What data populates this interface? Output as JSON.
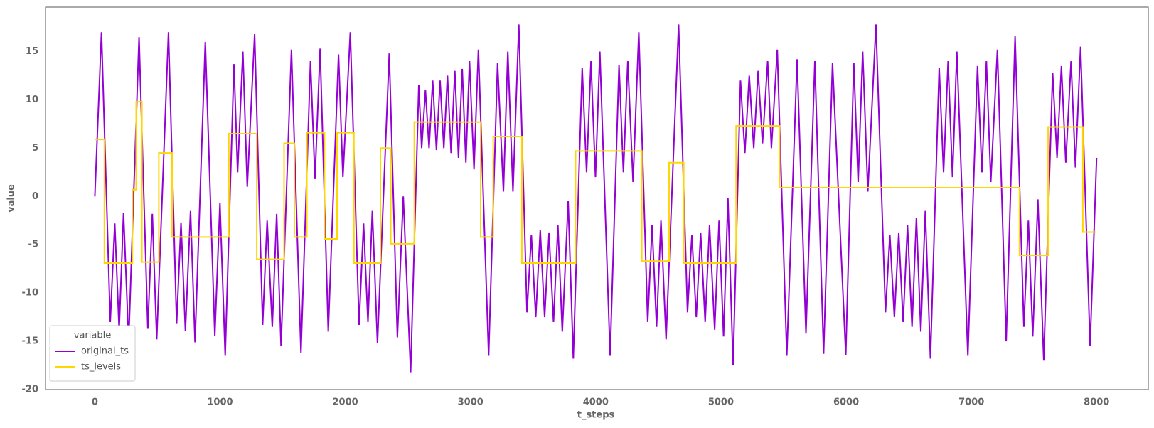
{
  "chart_data": {
    "type": "line",
    "x_label": "t_steps",
    "y_label": "value",
    "legend_title": "variable",
    "legend": "lower left",
    "grid": false,
    "xlim": [
      -394,
      8413
    ],
    "ylim": [
      -20,
      19.6
    ],
    "xticks": [
      0,
      1000,
      2000,
      3000,
      4000,
      5000,
      6000,
      7000,
      8000
    ],
    "yticks": [
      -20,
      -15,
      -10,
      -5,
      0,
      5,
      10,
      15
    ],
    "series": [
      {
        "name": "original_ts",
        "color": "#9400d3",
        "step": false,
        "x": [
          0,
          53,
          123,
          159,
          194,
          229,
          270,
          353,
          423,
          459,
          494,
          588,
          653,
          688,
          723,
          764,
          800,
          882,
          958,
          999,
          1041,
          1111,
          1140,
          1182,
          1217,
          1276,
          1340,
          1376,
          1417,
          1452,
          1487,
          1570,
          1646,
          1722,
          1758,
          1799,
          1864,
          1946,
          1981,
          2040,
          2110,
          2146,
          2181,
          2216,
          2257,
          2351,
          2416,
          2463,
          2522,
          2587,
          2610,
          2640,
          2669,
          2698,
          2728,
          2757,
          2787,
          2816,
          2845,
          2875,
          2904,
          2934,
          2963,
          2992,
          3028,
          3063,
          3145,
          3216,
          3263,
          3298,
          3339,
          3386,
          3451,
          3486,
          3521,
          3557,
          3592,
          3627,
          3663,
          3698,
          3733,
          3780,
          3821,
          3892,
          3927,
          3962,
          3998,
          4033,
          4115,
          4186,
          4221,
          4256,
          4298,
          4344,
          4415,
          4450,
          4486,
          4521,
          4562,
          4662,
          4733,
          4768,
          4803,
          4838,
          4874,
          4909,
          4950,
          4985,
          5021,
          5056,
          5097,
          5156,
          5191,
          5226,
          5262,
          5297,
          5332,
          5373,
          5403,
          5450,
          5526,
          5608,
          5679,
          5750,
          5820,
          5891,
          5997,
          6061,
          6096,
          6132,
          6173,
          6238,
          6314,
          6349,
          6385,
          6420,
          6455,
          6490,
          6526,
          6561,
          6596,
          6632,
          6673,
          6743,
          6778,
          6814,
          6849,
          6884,
          6972,
          7049,
          7084,
          7120,
          7155,
          7208,
          7278,
          7349,
          7419,
          7455,
          7490,
          7531,
          7578,
          7649,
          7684,
          7719,
          7754,
          7796,
          7831,
          7872,
          7948,
          8000
        ],
        "values": [
          0,
          17,
          -13,
          -2.8,
          -13.8,
          -1.7,
          -15,
          16.5,
          -13.7,
          -1.8,
          -14.8,
          17,
          -13.2,
          -2.7,
          -13.9,
          -1.5,
          -15.1,
          16,
          -14.4,
          -0.7,
          -16.5,
          13.7,
          2.5,
          15,
          1,
          16.8,
          -13.3,
          -2.5,
          -13.5,
          -1.8,
          -15.5,
          15.2,
          -16.2,
          14,
          1.8,
          15.3,
          -14,
          14.7,
          2,
          17,
          -13.3,
          -2.8,
          -13,
          -1.5,
          -15.2,
          14.8,
          -14.6,
          0,
          -18.2,
          11.5,
          5,
          11,
          5,
          12,
          4.8,
          12,
          5,
          12.5,
          4.5,
          13,
          4,
          13.2,
          3.5,
          14,
          2.8,
          15.2,
          -16.5,
          13.8,
          0.5,
          15,
          0.5,
          17.8,
          -12,
          -4,
          -12.5,
          -3.5,
          -12.5,
          -3.8,
          -13,
          -3,
          -14,
          -0.5,
          -16.8,
          13.3,
          2.5,
          14,
          2,
          15,
          -16.5,
          13.6,
          2.5,
          14,
          1.5,
          17,
          -13,
          -3,
          -13.5,
          -2.5,
          -14.8,
          17.8,
          -12,
          -4,
          -12.5,
          -3.8,
          -13,
          -3,
          -13.8,
          -2.5,
          -14.5,
          -0.2,
          -17.5,
          12,
          4.5,
          12.5,
          5,
          13,
          5.5,
          14,
          5,
          15.2,
          -16.5,
          14.2,
          -14.2,
          14,
          -16.3,
          13.8,
          -16.4,
          13.8,
          1.5,
          15,
          0.5,
          17.8,
          -12,
          -4,
          -12.5,
          -3.8,
          -13,
          -3,
          -13.5,
          -2.2,
          -14,
          -1.5,
          -16.8,
          13.3,
          2.5,
          14,
          2,
          15,
          -16.5,
          13.5,
          2.5,
          14,
          1.5,
          15.2,
          -15,
          16.6,
          -13.5,
          -2.5,
          -14.5,
          -0.3,
          -17,
          12.8,
          4,
          13.5,
          3.5,
          14,
          3,
          15.5,
          -15.5,
          4
        ]
      },
      {
        "name": "ts_levels",
        "color": "#ffd700",
        "step": true,
        "x": [
          0,
          76,
          300,
          330,
          376,
          511,
          617,
          1070,
          1293,
          1511,
          1593,
          1693,
          1834,
          1934,
          2069,
          2281,
          2363,
          2551,
          3081,
          3181,
          3410,
          3839,
          4368,
          4586,
          4703,
          5121,
          5468,
          7384,
          7613,
          7890,
          8000
        ],
        "values": [
          5.9,
          -6.9,
          0.7,
          9.8,
          -6.8,
          4.5,
          -4.2,
          6.5,
          -6.5,
          5.5,
          -4.2,
          6.6,
          -4.4,
          6.6,
          -6.9,
          5,
          -4.9,
          7.7,
          -4.2,
          6.2,
          -6.9,
          4.7,
          -6.7,
          3.5,
          -6.9,
          7.3,
          0.9,
          -6.1,
          7.2,
          -3.7,
          -3.7
        ]
      }
    ]
  }
}
